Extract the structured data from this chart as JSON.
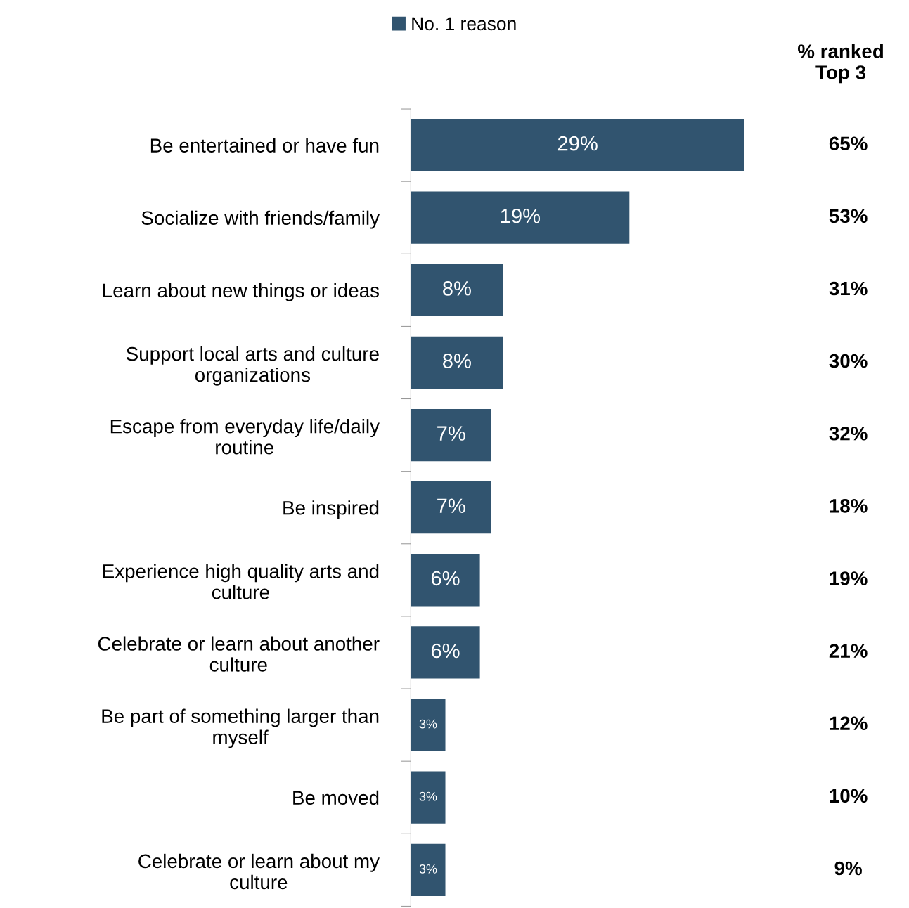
{
  "chart_data": {
    "type": "bar",
    "orientation": "horizontal",
    "legend": "top",
    "categories": [
      "Be entertained or have fun",
      "Socialize with friends/family",
      "Learn about new things or ideas",
      "Support local arts and culture\norganizations",
      "Escape from everyday life/daily\nroutine",
      "Be inspired",
      "Experience high quality arts and\nculture",
      "Celebrate or learn about another\nculture",
      "Be part of something larger than\nmyself",
      "Be moved",
      "Celebrate or learn about my\nculture"
    ],
    "series": [
      {
        "name": "No. 1 reason",
        "color": "#31546f",
        "values": [
          29,
          19,
          8,
          8,
          7,
          7,
          6,
          6,
          3,
          3,
          3
        ],
        "value_labels": [
          "29%",
          "19%",
          "8%",
          "8%",
          "7%",
          "7%",
          "6%",
          "6%",
          "3%",
          "3%",
          "3%"
        ]
      }
    ],
    "annotations": [
      "% ranked\nTop 3",
      "65%",
      "53%",
      "31%",
      "30%",
      "32%",
      "18%",
      "19%",
      "21%",
      "12%",
      "10%",
      "9%"
    ]
  }
}
